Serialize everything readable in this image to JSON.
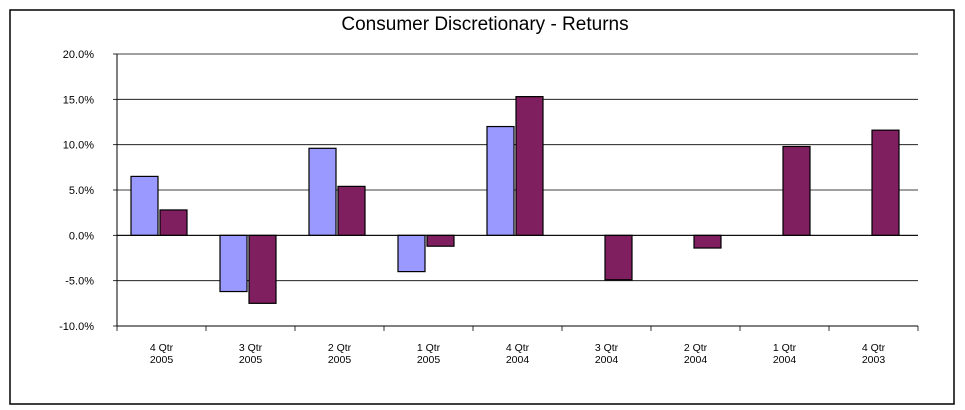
{
  "chart_data": {
    "type": "bar",
    "title": "Consumer Discretionary  -  Returns",
    "xlabel": "",
    "ylabel": "",
    "categories": [
      [
        "4 Qtr",
        "2005"
      ],
      [
        "3 Qtr",
        "2005"
      ],
      [
        "2 Qtr",
        "2005"
      ],
      [
        "1 Qtr",
        "2005"
      ],
      [
        "4 Qtr",
        "2004"
      ],
      [
        "3 Qtr",
        "2004"
      ],
      [
        "2 Qtr",
        "2004"
      ],
      [
        "1 Qtr",
        "2004"
      ],
      [
        "4 Qtr",
        "2003"
      ]
    ],
    "series": [
      {
        "color": "#9999ff",
        "values": [
          6.5,
          -6.2,
          9.6,
          -4.0,
          12.0,
          null,
          null,
          null,
          null
        ]
      },
      {
        "color": "#7f1f5f",
        "values": [
          2.8,
          -7.5,
          5.4,
          -1.2,
          15.3,
          -4.9,
          -1.4,
          9.8,
          11.6
        ]
      }
    ],
    "ylim": [
      -10,
      20
    ],
    "yticks": [
      "20.0%",
      "15.0%",
      "10.0%",
      "5.0%",
      "0.0%",
      "-5.0%",
      "-10.0%"
    ],
    "grid": true,
    "legend": "none"
  }
}
